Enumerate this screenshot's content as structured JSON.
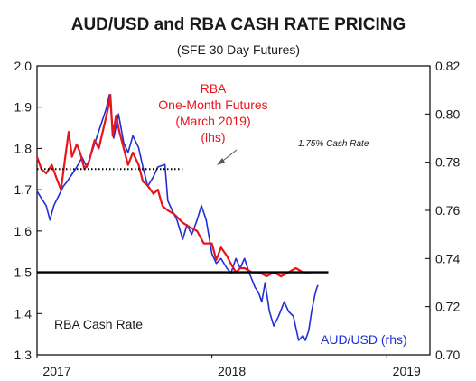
{
  "chart_data": {
    "type": "line",
    "title": "AUD/USD and RBA CASH RATE PRICING",
    "subtitle": "(SFE 30 Day Futures)",
    "x_range": [
      "2017-01-01",
      "2019-04-01"
    ],
    "x_ticks": [
      {
        "date": "2017-01-01",
        "label": "2017"
      },
      {
        "date": "2018-01-01",
        "label": "2018"
      },
      {
        "date": "2019-01-01",
        "label": "2019"
      }
    ],
    "y_left": {
      "min": 1.3,
      "max": 2.0,
      "ticks": [
        "1.3",
        "1.4",
        "1.5",
        "1.6",
        "1.7",
        "1.8",
        "1.9",
        "2.0"
      ]
    },
    "y_right": {
      "min": 0.7,
      "max": 0.82,
      "ticks": [
        "0.70",
        "0.72",
        "0.74",
        "0.76",
        "0.78",
        "0.80",
        "0.82"
      ]
    },
    "colors": {
      "rba_futures": "#e8151b",
      "aud_usd": "#1f2fd6",
      "cash_rate": "#000000",
      "axis": "#000000"
    },
    "series": [
      {
        "name": "RBA One-Month Futures (March 2019)",
        "axis": "left",
        "points": [
          [
            "2017-01-01",
            1.78
          ],
          [
            "2017-01-10",
            1.75
          ],
          [
            "2017-01-20",
            1.74
          ],
          [
            "2017-02-01",
            1.76
          ],
          [
            "2017-02-10",
            1.73
          ],
          [
            "2017-02-20",
            1.7
          ],
          [
            "2017-03-01",
            1.78
          ],
          [
            "2017-03-08",
            1.84
          ],
          [
            "2017-03-15",
            1.78
          ],
          [
            "2017-03-25",
            1.81
          ],
          [
            "2017-04-01",
            1.79
          ],
          [
            "2017-04-10",
            1.75
          ],
          [
            "2017-04-20",
            1.77
          ],
          [
            "2017-05-01",
            1.82
          ],
          [
            "2017-05-10",
            1.8
          ],
          [
            "2017-05-20",
            1.85
          ],
          [
            "2017-05-28",
            1.89
          ],
          [
            "2017-06-03",
            1.93
          ],
          [
            "2017-06-08",
            1.83
          ],
          [
            "2017-06-15",
            1.88
          ],
          [
            "2017-06-22",
            1.84
          ],
          [
            "2017-07-01",
            1.8
          ],
          [
            "2017-07-10",
            1.76
          ],
          [
            "2017-07-20",
            1.79
          ],
          [
            "2017-08-01",
            1.76
          ],
          [
            "2017-08-10",
            1.72
          ],
          [
            "2017-08-20",
            1.71
          ],
          [
            "2017-09-01",
            1.69
          ],
          [
            "2017-09-10",
            1.7
          ],
          [
            "2017-09-20",
            1.66
          ],
          [
            "2017-10-01",
            1.65
          ],
          [
            "2017-10-15",
            1.64
          ],
          [
            "2017-11-01",
            1.62
          ],
          [
            "2017-11-15",
            1.61
          ],
          [
            "2017-12-01",
            1.6
          ],
          [
            "2017-12-15",
            1.57
          ],
          [
            "2018-01-01",
            1.57
          ],
          [
            "2018-01-10",
            1.53
          ],
          [
            "2018-01-20",
            1.56
          ],
          [
            "2018-02-01",
            1.54
          ],
          [
            "2018-02-10",
            1.52
          ],
          [
            "2018-02-20",
            1.5
          ],
          [
            "2018-03-01",
            1.51
          ],
          [
            "2018-03-10",
            1.51
          ],
          [
            "2018-03-25",
            1.5
          ],
          [
            "2018-04-10",
            1.5
          ],
          [
            "2018-04-25",
            1.49
          ],
          [
            "2018-05-10",
            1.5
          ],
          [
            "2018-05-25",
            1.49
          ],
          [
            "2018-06-10",
            1.5
          ],
          [
            "2018-06-25",
            1.51
          ],
          [
            "2018-07-10",
            1.5
          ],
          [
            "2018-07-25",
            1.5
          ]
        ]
      },
      {
        "name": "AUD/USD (rhs)",
        "axis": "right",
        "points": [
          [
            "2017-01-01",
            0.768
          ],
          [
            "2017-01-10",
            0.765
          ],
          [
            "2017-01-20",
            0.762
          ],
          [
            "2017-01-28",
            0.756
          ],
          [
            "2017-02-05",
            0.762
          ],
          [
            "2017-02-15",
            0.766
          ],
          [
            "2017-02-25",
            0.77
          ],
          [
            "2017-03-05",
            0.772
          ],
          [
            "2017-03-15",
            0.775
          ],
          [
            "2017-03-25",
            0.778
          ],
          [
            "2017-04-05",
            0.782
          ],
          [
            "2017-04-15",
            0.778
          ],
          [
            "2017-04-25",
            0.784
          ],
          [
            "2017-05-05",
            0.79
          ],
          [
            "2017-05-15",
            0.796
          ],
          [
            "2017-05-25",
            0.802
          ],
          [
            "2017-06-01",
            0.808
          ],
          [
            "2017-06-10",
            0.79
          ],
          [
            "2017-06-20",
            0.8
          ],
          [
            "2017-07-01",
            0.788
          ],
          [
            "2017-07-10",
            0.784
          ],
          [
            "2017-07-20",
            0.791
          ],
          [
            "2017-08-01",
            0.786
          ],
          [
            "2017-08-10",
            0.778
          ],
          [
            "2017-08-20",
            0.77
          ],
          [
            "2017-09-01",
            0.774
          ],
          [
            "2017-09-10",
            0.778
          ],
          [
            "2017-09-25",
            0.779
          ],
          [
            "2017-10-01",
            0.764
          ],
          [
            "2017-10-10",
            0.76
          ],
          [
            "2017-10-20",
            0.756
          ],
          [
            "2017-11-01",
            0.748
          ],
          [
            "2017-11-10",
            0.754
          ],
          [
            "2017-11-20",
            0.75
          ],
          [
            "2017-12-01",
            0.756
          ],
          [
            "2017-12-10",
            0.762
          ],
          [
            "2017-12-20",
            0.756
          ],
          [
            "2018-01-01",
            0.742
          ],
          [
            "2018-01-10",
            0.738
          ],
          [
            "2018-01-20",
            0.74
          ],
          [
            "2018-02-01",
            0.736
          ],
          [
            "2018-02-10",
            0.734
          ],
          [
            "2018-02-20",
            0.74
          ],
          [
            "2018-03-01",
            0.736
          ],
          [
            "2018-03-10",
            0.74
          ],
          [
            "2018-03-20",
            0.734
          ],
          [
            "2018-04-01",
            0.728
          ],
          [
            "2018-04-08",
            0.726
          ],
          [
            "2018-04-15",
            0.722
          ],
          [
            "2018-04-22",
            0.73
          ],
          [
            "2018-05-01",
            0.718
          ],
          [
            "2018-05-10",
            0.712
          ],
          [
            "2018-05-20",
            0.716
          ],
          [
            "2018-06-01",
            0.722
          ],
          [
            "2018-06-10",
            0.718
          ],
          [
            "2018-06-20",
            0.716
          ],
          [
            "2018-07-01",
            0.706
          ],
          [
            "2018-07-10",
            0.708
          ],
          [
            "2018-07-15",
            0.706
          ],
          [
            "2018-07-22",
            0.71
          ],
          [
            "2018-07-28",
            0.718
          ],
          [
            "2018-08-05",
            0.726
          ],
          [
            "2018-08-10",
            0.729
          ]
        ]
      },
      {
        "name": "RBA Cash Rate",
        "axis": "left",
        "points": [
          [
            "2017-01-01",
            1.5
          ],
          [
            "2018-09-01",
            1.5
          ]
        ]
      },
      {
        "name": "1.75% Cash Rate",
        "axis": "left",
        "style": "dotted",
        "points": [
          [
            "2017-01-01",
            1.75
          ],
          [
            "2017-11-01",
            1.75
          ]
        ]
      }
    ],
    "annotations": {
      "rba_label": [
        "RBA",
        "One-Month Futures",
        "(March 2019)",
        "(lhs)"
      ],
      "cash_175": "1.75% Cash Rate",
      "cash_rate": "RBA Cash Rate",
      "aud_usd": "AUD/USD (rhs)"
    }
  }
}
